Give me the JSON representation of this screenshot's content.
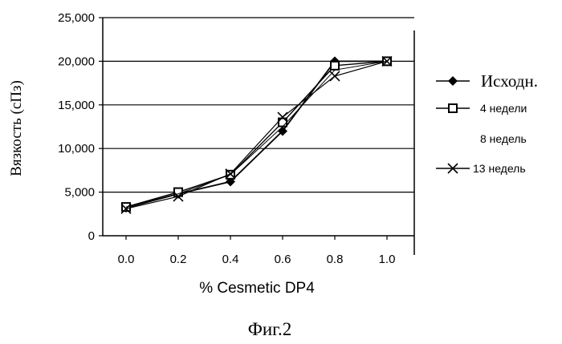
{
  "chart_data": {
    "type": "line",
    "x": [
      0.0,
      0.2,
      0.4,
      0.6,
      0.8,
      1.0
    ],
    "xticks": [
      "0.0",
      "0.2",
      "0.4",
      "0.6",
      "0.8",
      "1.0"
    ],
    "yticks": [
      "0",
      "5,000",
      "10,000",
      "15,000",
      "20,000",
      "25,000"
    ],
    "ylim": [
      0,
      25000
    ],
    "xlabel": "% Cesmetic DP4",
    "ylabel": "Вязкость (сПз)",
    "grid": "horizontal",
    "legend_position": "right",
    "series": [
      {
        "name": "Исходн.",
        "marker": "diamond",
        "values": [
          3200,
          4800,
          6200,
          12000,
          20000,
          20000
        ]
      },
      {
        "name": "4  недели",
        "marker": "square",
        "values": [
          3300,
          5000,
          7000,
          13000,
          19500,
          20000
        ]
      },
      {
        "name": "8  недель",
        "marker": "none",
        "values": [
          3300,
          4800,
          7000,
          12500,
          19000,
          20000
        ]
      },
      {
        "name": "13 недель",
        "marker": "x",
        "values": [
          3100,
          4500,
          7100,
          13600,
          18300,
          20000
        ]
      }
    ]
  },
  "figure": {
    "label": "Фиг.2"
  }
}
